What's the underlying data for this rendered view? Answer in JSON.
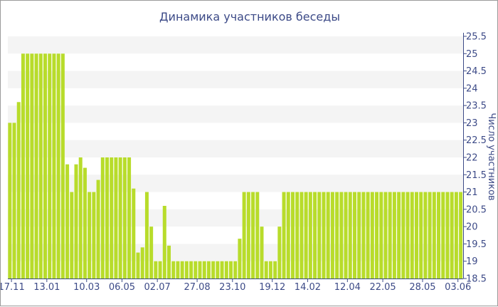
{
  "chart_data": {
    "type": "bar",
    "title": "Динамика участников беседы",
    "ylabel": "Число участников",
    "xlabel": "",
    "ylim": [
      18.5,
      25.5
    ],
    "ytick_step": 0.5,
    "grid": "horizontal alternating bands",
    "x_tick_labels": [
      "17.11",
      "13.01",
      "10.03",
      "06.05",
      "02.07",
      "27.08",
      "23.10",
      "19.12",
      "14.02",
      "12.04",
      "22.05",
      "28.05",
      "03.06"
    ],
    "x_tick_label_bar_index": [
      0,
      8,
      17,
      25,
      33,
      42,
      50,
      59,
      67,
      76,
      84,
      93,
      101
    ],
    "values": [
      23,
      23,
      23.6,
      25,
      25,
      25,
      25,
      25,
      25,
      25,
      25,
      25,
      25,
      21.8,
      21,
      21.8,
      22,
      21.7,
      21,
      21,
      21.35,
      22,
      22,
      22,
      22,
      22,
      22,
      22,
      21.1,
      19.25,
      19.4,
      21,
      20,
      19,
      19,
      20.6,
      19.45,
      19,
      19,
      19,
      19,
      19,
      19,
      19,
      19,
      19,
      19,
      19,
      19,
      19,
      19,
      19,
      19.65,
      21,
      21,
      21,
      21,
      20,
      19,
      19,
      19,
      20,
      21,
      21,
      21,
      21,
      21,
      21,
      21,
      21,
      21,
      21,
      21,
      21,
      21,
      21,
      21,
      21,
      21,
      21,
      21,
      21,
      21,
      21,
      21,
      21,
      21,
      21,
      21,
      21,
      21,
      21,
      21,
      21,
      21,
      21,
      21,
      21,
      21,
      21,
      21,
      21,
      21
    ],
    "colors": {
      "bar": "#b8dc2b",
      "band": "#f4f4f4",
      "text": "#3c4a87",
      "axis": "#3c4a87"
    }
  }
}
